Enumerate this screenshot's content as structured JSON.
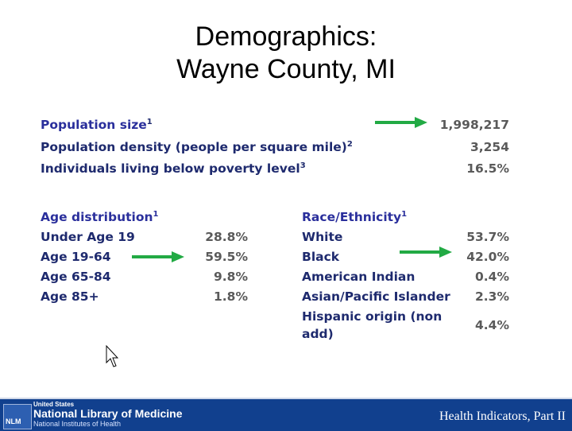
{
  "title": {
    "line1": "Demographics:",
    "line2": "Wayne County, MI"
  },
  "population": {
    "size": {
      "label": "Population size",
      "sup": "1",
      "value": "1,998,217"
    },
    "density": {
      "label": "Population density (people per square mile)",
      "sup": "2",
      "value": "3,254"
    },
    "poverty": {
      "label": "Individuals living below poverty level",
      "sup": "3",
      "value": "16.5%"
    }
  },
  "age": {
    "heading": "Age distribution",
    "sup": "1",
    "rows": [
      {
        "label": "Under Age 19",
        "value": "28.8%"
      },
      {
        "label": "Age 19-64",
        "value": "59.5%"
      },
      {
        "label": "Age 65-84",
        "value": "9.8%"
      },
      {
        "label": "Age 85+",
        "value": "1.8%"
      }
    ]
  },
  "race": {
    "heading": "Race/Ethnicity",
    "sup": "1",
    "rows": [
      {
        "label": "White",
        "value": "53.7%"
      },
      {
        "label": "Black",
        "value": "42.0%"
      },
      {
        "label": "American Indian",
        "value": "0.4%"
      },
      {
        "label": "Asian/Pacific Islander",
        "value": "2.3%"
      },
      {
        "label": "Hispanic origin (non",
        "label2": "add)",
        "value": "4.4%"
      }
    ]
  },
  "footer": {
    "logo_mark": "NLM",
    "line1": "United States",
    "line2": "National Library of Medicine",
    "line3": "National Institutes of Health",
    "caption": "Health Indicators, Part II"
  },
  "colors": {
    "arrow": "#22aa44",
    "heading": "#2a2f9c",
    "label": "#1e2a6e",
    "value": "#5a5a5a",
    "footer": "#11408e"
  }
}
